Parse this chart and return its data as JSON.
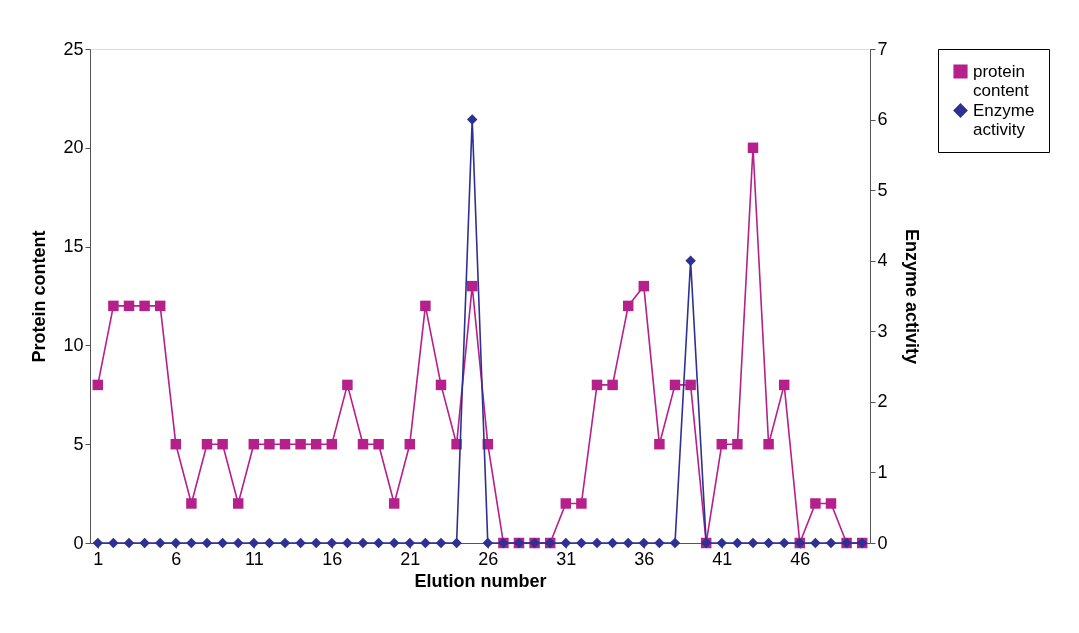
{
  "chart_data": {
    "type": "line",
    "xlabel": "Elution number",
    "ylabel": "Protein content",
    "y2label": "Enzyme activity",
    "x": [
      1,
      2,
      3,
      4,
      5,
      6,
      7,
      8,
      9,
      10,
      11,
      12,
      13,
      14,
      15,
      16,
      17,
      18,
      19,
      20,
      21,
      22,
      23,
      24,
      25,
      26,
      27,
      28,
      29,
      30,
      31,
      32,
      33,
      34,
      35,
      36,
      37,
      38,
      39,
      40,
      41,
      42,
      43,
      44,
      45,
      46,
      47,
      48,
      49,
      50
    ],
    "series": [
      {
        "name": "protein content",
        "color": "#b5208a",
        "marker": "square",
        "values": [
          8,
          12,
          12,
          12,
          12,
          5,
          2,
          5,
          5,
          2,
          5,
          5,
          5,
          5,
          5,
          5,
          8,
          5,
          5,
          2,
          5,
          12,
          8,
          5,
          13,
          5,
          0,
          0,
          0,
          0,
          2,
          2,
          8,
          8,
          12,
          13,
          5,
          8,
          8,
          0,
          5,
          5,
          20,
          5,
          8,
          0,
          2,
          2,
          0,
          0
        ]
      },
      {
        "name": "Enzyme activity",
        "color": "#2e3192",
        "marker": "diamond",
        "axis": "y2",
        "values": [
          0,
          0,
          0,
          0,
          0,
          0,
          0,
          0,
          0,
          0,
          0,
          0,
          0,
          0,
          0,
          0,
          0,
          0,
          0,
          0,
          0,
          0,
          0,
          0,
          6,
          0,
          0,
          0,
          0,
          0,
          0,
          0,
          0,
          0,
          0,
          0,
          0,
          0,
          4,
          0,
          0,
          0,
          0,
          0,
          0,
          0,
          0,
          0,
          0,
          0
        ]
      }
    ],
    "xlim": [
      0.5,
      50.5
    ],
    "xticks": [
      1,
      6,
      11,
      16,
      21,
      26,
      31,
      36,
      41,
      46
    ],
    "ylim": [
      0,
      25
    ],
    "yticks": [
      0,
      5,
      10,
      15,
      20,
      25
    ],
    "y2lim": [
      0,
      7
    ],
    "y2ticks": [
      0,
      1,
      2,
      3,
      4,
      5,
      6,
      7
    ],
    "grid": false,
    "legend": "right",
    "line_style": "solid"
  }
}
